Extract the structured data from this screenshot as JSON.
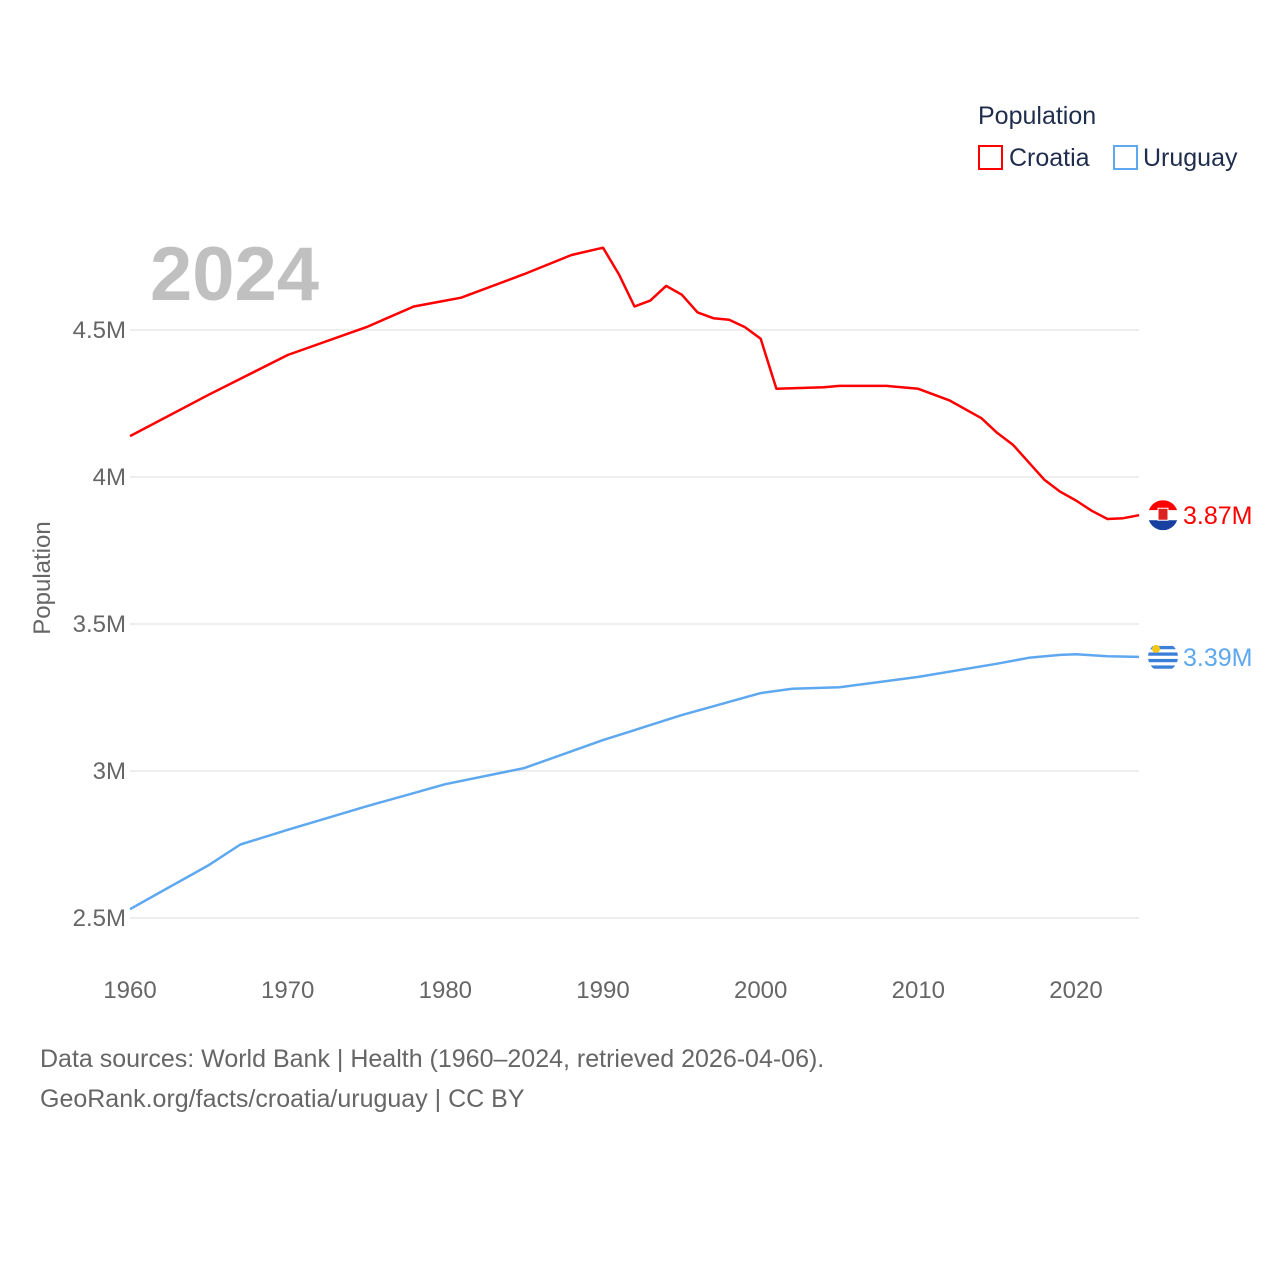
{
  "chart_data": {
    "type": "line",
    "year_label": "2024",
    "ylabel": "Population",
    "xlabel": "",
    "legend": {
      "title": "Population",
      "position": "top-right"
    },
    "xlim": [
      1960,
      2024
    ],
    "ylim": [
      2.5,
      4.8
    ],
    "x_ticks": [
      "1960",
      "1970",
      "1980",
      "1990",
      "2000",
      "2010",
      "2020"
    ],
    "y_ticks": [
      {
        "v": 2.5,
        "label": "2.5M"
      },
      {
        "v": 3,
        "label": "3M"
      },
      {
        "v": 3.5,
        "label": "3.5M"
      },
      {
        "v": 4,
        "label": "4M"
      },
      {
        "v": 4.5,
        "label": "4.5M"
      }
    ],
    "series": [
      {
        "name": "Croatia",
        "color": "#ff0000",
        "end_label": "3.87M",
        "x": [
          1960,
          1965,
          1970,
          1975,
          1978,
          1980,
          1981,
          1985,
          1988,
          1990,
          1991,
          1992,
          1993,
          1994,
          1995,
          1996,
          1997,
          1998,
          1999,
          2000,
          2001,
          2004,
          2005,
          2008,
          2010,
          2012,
          2014,
          2015,
          2016,
          2017,
          2018,
          2019,
          2020,
          2021,
          2022,
          2023,
          2024
        ],
        "y": [
          4.139,
          4.28,
          4.415,
          4.51,
          4.58,
          4.6,
          4.61,
          4.69,
          4.755,
          4.78,
          4.69,
          4.58,
          4.6,
          4.65,
          4.62,
          4.56,
          4.54,
          4.535,
          4.51,
          4.47,
          4.3,
          4.305,
          4.31,
          4.31,
          4.3,
          4.26,
          4.2,
          4.15,
          4.11,
          4.05,
          3.99,
          3.95,
          3.92,
          3.885,
          3.857,
          3.86,
          3.87
        ]
      },
      {
        "name": "Uruguay",
        "color": "#5ea8f0",
        "end_label": "3.39M",
        "x": [
          1960,
          1962,
          1965,
          1967,
          1970,
          1975,
          1978,
          1980,
          1985,
          1990,
          1995,
          2000,
          2002,
          2005,
          2010,
          2015,
          2017,
          2019,
          2020,
          2022,
          2024
        ],
        "y": [
          2.53,
          2.59,
          2.68,
          2.75,
          2.8,
          2.88,
          2.925,
          2.955,
          3.01,
          3.105,
          3.19,
          3.265,
          3.28,
          3.285,
          3.32,
          3.365,
          3.385,
          3.395,
          3.397,
          3.39,
          3.388
        ]
      }
    ]
  },
  "footer": {
    "line1": "Data sources: World Bank | Health (1960–2024, retrieved 2026-04-06).",
    "line2": "GeoRank.org/facts/croatia/uruguay | CC BY"
  }
}
